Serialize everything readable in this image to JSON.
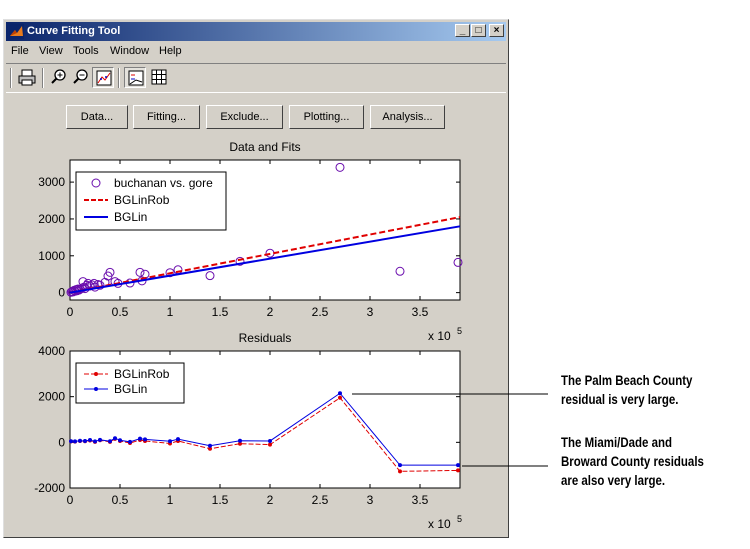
{
  "window": {
    "title": "Curve Fitting Tool",
    "controls": [
      "_",
      "□",
      "×"
    ]
  },
  "menu": [
    "File",
    "View",
    "Tools",
    "Window",
    "Help"
  ],
  "toolbar_icons": [
    "print-icon",
    "zoom-in-icon",
    "zoom-out-icon",
    "axes-limit-icon",
    "legend-icon",
    "grid-icon"
  ],
  "buttons": [
    "Data...",
    "Fitting...",
    "Exclude...",
    "Plotting...",
    "Analysis..."
  ],
  "colors": {
    "data": "#6a0dad",
    "robust": "#e00000",
    "linear": "#0000e0",
    "titlebar": "#0a246a"
  },
  "chart_data": [
    {
      "type": "scatter",
      "title": "Data and Fits",
      "xlim": [
        0,
        3.9
      ],
      "ylim": [
        -200,
        3600
      ],
      "x_ticks": [
        "0",
        "0.5",
        "1",
        "1.5",
        "2",
        "2.5",
        "3",
        "3.5"
      ],
      "y_ticks": [
        "0",
        "1000",
        "2000",
        "3000"
      ],
      "x_multiplier": "x 10",
      "x_multiplier_exp": "5",
      "legend": [
        "buchanan vs. gore",
        "BGLinRob",
        "BGLin"
      ],
      "legend_position": "top-left",
      "series": [
        {
          "name": "buchanan vs. gore",
          "kind": "points",
          "x": [
            0.01,
            0.02,
            0.03,
            0.04,
            0.05,
            0.06,
            0.07,
            0.08,
            0.09,
            0.1,
            0.12,
            0.13,
            0.14,
            0.15,
            0.17,
            0.18,
            0.2,
            0.22,
            0.24,
            0.25,
            0.28,
            0.3,
            0.35,
            0.38,
            0.4,
            0.45,
            0.48,
            0.6,
            0.7,
            0.72,
            0.75,
            1.0,
            1.08,
            1.4,
            1.7,
            2.0,
            2.7,
            3.3,
            3.88
          ],
          "y": [
            10,
            30,
            20,
            60,
            40,
            80,
            50,
            100,
            70,
            90,
            120,
            300,
            150,
            110,
            200,
            250,
            180,
            210,
            250,
            150,
            220,
            200,
            280,
            450,
            550,
            300,
            250,
            260,
            550,
            320,
            500,
            540,
            620,
            460,
            850,
            1070,
            3400,
            580,
            820
          ]
        },
        {
          "name": "BGLinRob",
          "kind": "line",
          "x": [
            0,
            3.9
          ],
          "y": [
            0,
            2050
          ]
        },
        {
          "name": "BGLin",
          "kind": "line",
          "x": [
            0,
            3.9
          ],
          "y": [
            0,
            1800
          ]
        }
      ]
    },
    {
      "type": "line",
      "title": "Residuals",
      "xlim": [
        0,
        3.9
      ],
      "ylim": [
        -2000,
        4000
      ],
      "x_ticks": [
        "0",
        "0.5",
        "1",
        "1.5",
        "2",
        "2.5",
        "3",
        "3.5"
      ],
      "y_ticks": [
        "-2000",
        "0",
        "2000",
        "4000"
      ],
      "x_multiplier": "x 10",
      "x_multiplier_exp": "5",
      "legend": [
        "BGLinRob",
        "BGLin"
      ],
      "legend_position": "top-left",
      "series": [
        {
          "name": "BGLinRob",
          "x": [
            0.01,
            0.05,
            0.1,
            0.15,
            0.2,
            0.25,
            0.3,
            0.4,
            0.45,
            0.5,
            0.6,
            0.7,
            0.75,
            1.0,
            1.08,
            1.4,
            1.7,
            2.0,
            2.7,
            3.3,
            3.88
          ],
          "y": [
            40,
            30,
            60,
            50,
            80,
            20,
            90,
            20,
            150,
            60,
            -30,
            100,
            60,
            -50,
            60,
            -280,
            -60,
            -100,
            1950,
            -1270,
            -1230
          ]
        },
        {
          "name": "BGLin",
          "x": [
            0.01,
            0.05,
            0.1,
            0.15,
            0.2,
            0.25,
            0.3,
            0.4,
            0.45,
            0.5,
            0.6,
            0.7,
            0.75,
            1.0,
            1.08,
            1.4,
            1.7,
            2.0,
            2.7,
            3.3,
            3.88
          ],
          "y": [
            50,
            40,
            70,
            60,
            100,
            40,
            110,
            50,
            180,
            90,
            20,
            160,
            130,
            50,
            140,
            -150,
            70,
            60,
            2150,
            -1000,
            -1000
          ]
        }
      ]
    }
  ],
  "annotations": [
    "The Palm Beach County residual is very large.",
    "The Miami/Dade and Broward County residuals are also very large."
  ]
}
